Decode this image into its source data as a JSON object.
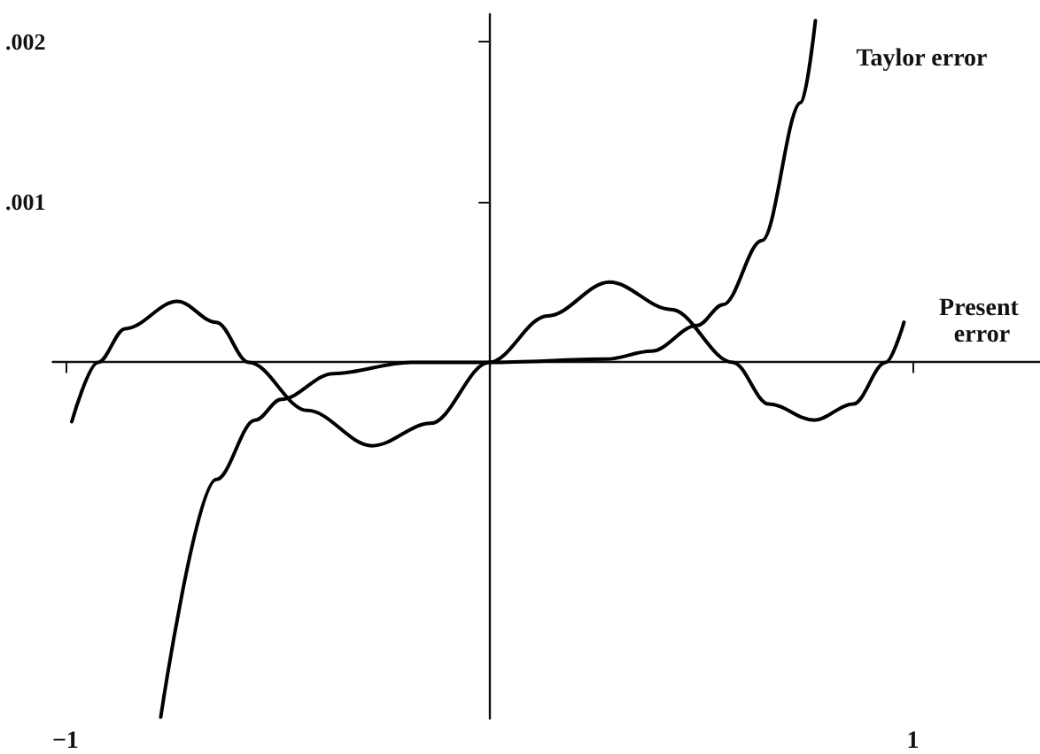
{
  "chart_data": {
    "type": "line",
    "xlim": [
      -1.03,
      1.3
    ],
    "ylim": [
      -0.00222,
      0.00217
    ],
    "xticks": [
      {
        "value": -1,
        "label": "−1"
      },
      {
        "value": 1,
        "label": "1"
      }
    ],
    "yticks": [
      {
        "value": 0.001,
        "label": ".001"
      },
      {
        "value": 0.002,
        "label": ".002"
      }
    ],
    "grid": false,
    "legend": false,
    "marker": "none",
    "line_style": "solid",
    "series": [
      {
        "name": "Taylor error",
        "color": "#000000",
        "x": [
          -0.775,
          -0.644,
          -0.552,
          -0.491,
          -0.368,
          -0.184,
          0,
          0.276,
          0.383,
          0.491,
          0.552,
          0.644,
          0.736,
          0.77
        ],
        "values": [
          -0.00221,
          -0.00073,
          -0.00036,
          -0.00023,
          -7e-05,
          0,
          0,
          2e-05,
          7e-05,
          0.00023,
          0.00036,
          0.00076,
          0.00162,
          0.00213
        ]
      },
      {
        "name": "Present error",
        "color": "#000000",
        "x": [
          -0.985,
          -0.923,
          -0.859,
          -0.736,
          -0.644,
          -0.567,
          -0.429,
          -0.276,
          -0.138,
          0,
          0.138,
          0.284,
          0.429,
          0.575,
          0.66,
          0.767,
          0.859,
          0.936,
          0.979
        ],
        "values": [
          -0.00037,
          0,
          0.00021,
          0.00038,
          0.00025,
          0,
          -0.0003,
          -0.00052,
          -0.00038,
          0,
          0.00029,
          0.0005,
          0.00033,
          0,
          -0.00026,
          -0.00036,
          -0.00026,
          0,
          0.00025
        ]
      }
    ]
  }
}
